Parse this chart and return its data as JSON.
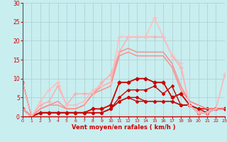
{
  "x": [
    0,
    1,
    2,
    3,
    4,
    5,
    6,
    7,
    8,
    9,
    10,
    11,
    12,
    13,
    14,
    15,
    16,
    17,
    18,
    19,
    20,
    21,
    22,
    23
  ],
  "lines": [
    {
      "y": [
        2,
        0,
        1,
        1,
        1,
        1,
        1,
        1,
        1,
        1,
        2,
        4,
        5,
        4,
        4,
        4,
        4,
        4,
        3,
        3,
        2,
        2,
        2,
        2
      ],
      "color": "#cc0000",
      "lw": 1.0,
      "marker": "D",
      "ms": 2.0,
      "alpha": 1.0
    },
    {
      "y": [
        2,
        0,
        1,
        1,
        1,
        1,
        1,
        1,
        1,
        1,
        2,
        4,
        5,
        5,
        4,
        4,
        4,
        4,
        3,
        3,
        2,
        2,
        2,
        2
      ],
      "color": "#cc0000",
      "lw": 1.0,
      "marker": "D",
      "ms": 2.0,
      "alpha": 1.0
    },
    {
      "y": [
        9,
        0,
        1,
        1,
        1,
        1,
        1,
        1,
        1,
        1,
        2,
        5,
        7,
        7,
        7,
        8,
        6,
        8,
        3,
        3,
        2,
        1,
        2,
        2
      ],
      "color": "#cc0000",
      "lw": 1.0,
      "marker": "D",
      "ms": 2.0,
      "alpha": 1.0
    },
    {
      "y": [
        2,
        0,
        1,
        1,
        1,
        1,
        1,
        1,
        2,
        2,
        3,
        9,
        9,
        10,
        10,
        9,
        9,
        5,
        6,
        3,
        1,
        1,
        2,
        2
      ],
      "color": "#cc0000",
      "lw": 1.3,
      "marker": "D",
      "ms": 2.5,
      "alpha": 1.0
    },
    {
      "y": [
        2,
        0,
        2,
        3,
        3,
        2,
        2,
        3,
        6,
        7,
        8,
        16,
        17,
        16,
        16,
        16,
        16,
        13,
        7,
        4,
        3,
        2,
        2,
        2
      ],
      "color": "#ff8888",
      "lw": 1.0,
      "marker": null,
      "ms": 0,
      "alpha": 1.0
    },
    {
      "y": [
        2,
        0,
        2,
        3,
        4,
        2,
        2,
        3,
        6,
        8,
        9,
        17,
        18,
        17,
        17,
        17,
        17,
        14,
        8,
        4,
        3,
        2,
        2,
        2
      ],
      "color": "#ff8888",
      "lw": 1.0,
      "marker": null,
      "ms": 0,
      "alpha": 1.0
    },
    {
      "y": [
        2,
        0,
        3,
        4,
        8,
        3,
        6,
        6,
        6,
        9,
        11,
        17,
        21,
        21,
        21,
        21,
        21,
        16,
        13,
        3,
        1,
        1,
        2,
        11
      ],
      "color": "#ffaaaa",
      "lw": 1.0,
      "marker": "+",
      "ms": 4.0,
      "alpha": 1.0
    },
    {
      "y": [
        9,
        0,
        4,
        7,
        9,
        3,
        3,
        4,
        7,
        8,
        9,
        21,
        21,
        21,
        21,
        26,
        21,
        16,
        14,
        3,
        1,
        1,
        2,
        11
      ],
      "color": "#ffbbbb",
      "lw": 1.0,
      "marker": "+",
      "ms": 4.0,
      "alpha": 1.0
    }
  ],
  "ylim": [
    0,
    30
  ],
  "xlim": [
    0,
    23
  ],
  "yticks": [
    0,
    5,
    10,
    15,
    20,
    25,
    30
  ],
  "xticks": [
    0,
    1,
    2,
    3,
    4,
    5,
    6,
    7,
    8,
    9,
    10,
    11,
    12,
    13,
    14,
    15,
    16,
    17,
    18,
    19,
    20,
    21,
    22,
    23
  ],
  "xlabel": "Vent moyen/en rafales ( km/h )",
  "bg_color": "#c8eef0",
  "grid_color": "#b0cccc",
  "label_color": "#cc0000",
  "tick_color": "#cc0000"
}
